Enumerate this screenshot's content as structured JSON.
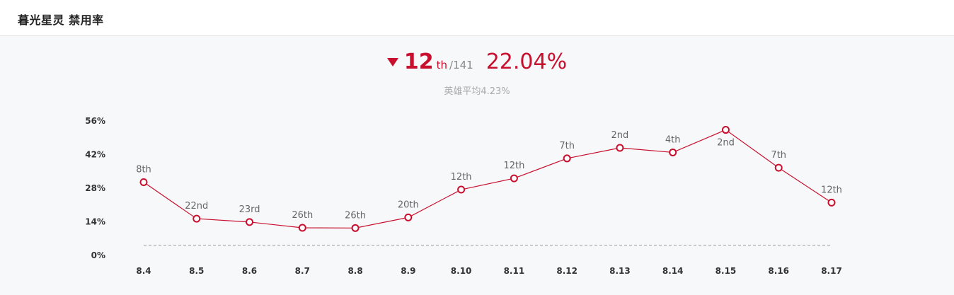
{
  "header": {
    "title": "暮光星灵 禁用率"
  },
  "summary": {
    "rank": "12",
    "rank_suffix": "th",
    "rank_total": "/141",
    "rate": "22.04%",
    "trend": "down",
    "hero_avg": "英雄平均4.23%"
  },
  "colors": {
    "accent": "#c8102e",
    "avg_line": "#999999"
  },
  "chart_data": {
    "type": "line",
    "categories": [
      "8.4",
      "8.5",
      "8.6",
      "8.7",
      "8.8",
      "8.9",
      "8.10",
      "8.11",
      "8.12",
      "8.13",
      "8.14",
      "8.15",
      "8.16",
      "8.17"
    ],
    "series": [
      {
        "values": [
          30.5,
          15.3,
          13.9,
          11.5,
          11.4,
          15.8,
          27.4,
          32.1,
          40.4,
          44.8,
          42.9,
          52.3,
          36.5,
          22.0
        ],
        "point_labels": [
          "8th",
          "22nd",
          "23rd",
          "26th",
          "26th",
          "20th",
          "12th",
          "12th",
          "7th",
          "2nd",
          "4th",
          "2nd",
          "7th",
          "12th"
        ]
      }
    ],
    "reference_line": 4.23,
    "yticks": [
      "56%",
      "42%",
      "28%",
      "14%",
      "0%"
    ],
    "ylim": [
      0,
      56
    ],
    "grid": false
  }
}
